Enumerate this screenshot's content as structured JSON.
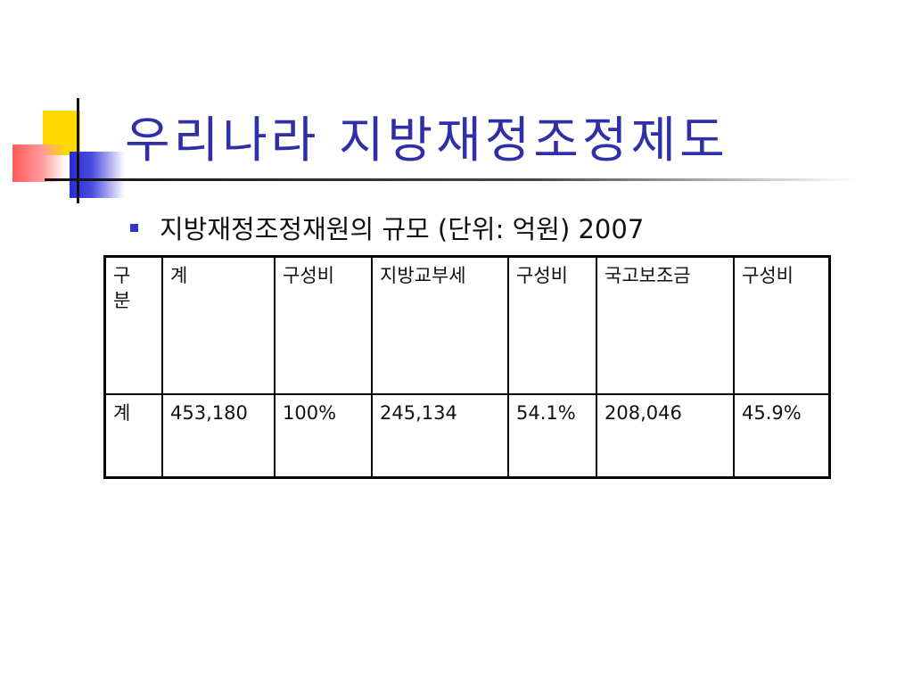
{
  "title": "우리나라 지방재정조정제도",
  "bullet": "지방재정조정재원의 규모 (단위: 억원) 2007",
  "table": {
    "header": [
      "구\n분",
      "계",
      "구성비",
      "지방교부세",
      "구성비",
      "국고보조금",
      "구성비"
    ],
    "rows": [
      [
        "계",
        "453,180",
        "100%",
        "245,134",
        "54.1%",
        "208,046",
        "45.9%"
      ]
    ]
  },
  "colors": {
    "title": "#2f2fa8",
    "bullet": "#3333cc",
    "accent_yellow": "#ffd800",
    "accent_red": "#ff5a5a",
    "accent_blue": "#2b2bd4"
  }
}
